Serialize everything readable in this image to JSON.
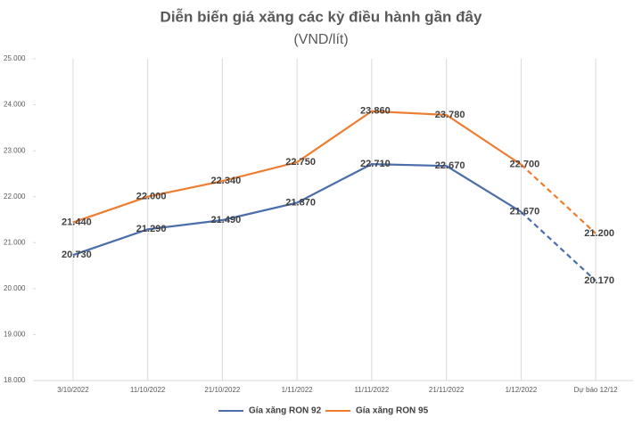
{
  "chart_data": {
    "type": "line",
    "title": "Diễn biến giá xăng các kỳ điều hành gần đây",
    "subtitle": "(VND/lít)",
    "categories": [
      "3/10/2022",
      "11/10/2022",
      "21/10/2022",
      "1/11/2022",
      "11/11/2022",
      "21/11/2022",
      "1/12/2022",
      "Dự báo 12/12"
    ],
    "series": [
      {
        "name": "Gía xăng RON 92",
        "color": "#4a6ea9",
        "values": [
          20730,
          21290,
          21490,
          21870,
          22710,
          22670,
          21670,
          20170
        ],
        "value_labels": [
          "20.730",
          "21.290",
          "21.490",
          "21.870",
          "22.710",
          "22.670",
          "21.670",
          "20.170"
        ],
        "dashed_last_segment": true
      },
      {
        "name": "Gía xăng RON 95",
        "color": "#ed7d31",
        "values": [
          21440,
          22000,
          22340,
          22750,
          23860,
          23780,
          22700,
          21200
        ],
        "value_labels": [
          "21.440",
          "22.000",
          "22.340",
          "22.750",
          "23.860",
          "23.780",
          "22.700",
          "21.200"
        ],
        "dashed_last_segment": true
      }
    ],
    "ylim": [
      18000,
      25000
    ],
    "yticks": [
      {
        "value": 18000,
        "label": "18.000"
      },
      {
        "value": 19000,
        "label": "19.000"
      },
      {
        "value": 20000,
        "label": "20.000"
      },
      {
        "value": 21000,
        "label": "21.000"
      },
      {
        "value": 22000,
        "label": "22.000"
      },
      {
        "value": 23000,
        "label": "23.000"
      },
      {
        "value": 24000,
        "label": "24.000"
      },
      {
        "value": 25000,
        "label": "25.000"
      }
    ],
    "legend": "bottom"
  }
}
